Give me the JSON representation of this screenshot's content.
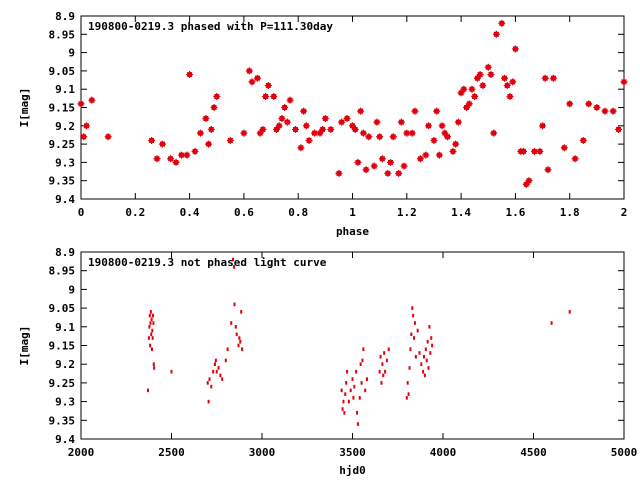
{
  "colors": {
    "points": "#e0000e",
    "axes": "#000000",
    "background": "#ffffff"
  },
  "chart_data": [
    {
      "type": "scatter",
      "title": "190800-0219.3 phased with P=111.30day",
      "xlabel": "phase",
      "ylabel": "I[mag]",
      "xlim": [
        0,
        2
      ],
      "ylim": [
        8.9,
        9.4
      ],
      "y_inverted": true,
      "grid": false,
      "marker": "filled-square-plus",
      "xticks": [
        "0",
        "0.2",
        "0.4",
        "0.6",
        "0.8",
        "1",
        "1.2",
        "1.4",
        "1.6",
        "1.8",
        "2"
      ],
      "yticks": [
        "8.9",
        "8.95",
        "9",
        "9.05",
        "9.1",
        "9.15",
        "9.2",
        "9.25",
        "9.3",
        "9.35",
        "9.4"
      ],
      "points": [
        [
          0.0,
          9.14
        ],
        [
          0.01,
          9.23
        ],
        [
          0.02,
          9.2
        ],
        [
          0.04,
          9.13
        ],
        [
          0.1,
          9.23
        ],
        [
          0.26,
          9.24
        ],
        [
          0.28,
          9.29
        ],
        [
          0.3,
          9.25
        ],
        [
          0.33,
          9.29
        ],
        [
          0.35,
          9.3
        ],
        [
          0.37,
          9.28
        ],
        [
          0.39,
          9.28
        ],
        [
          0.4,
          9.06
        ],
        [
          0.42,
          9.27
        ],
        [
          0.44,
          9.22
        ],
        [
          0.46,
          9.18
        ],
        [
          0.47,
          9.25
        ],
        [
          0.48,
          9.21
        ],
        [
          0.49,
          9.15
        ],
        [
          0.5,
          9.12
        ],
        [
          0.55,
          9.24
        ],
        [
          0.6,
          9.22
        ],
        [
          0.62,
          9.05
        ],
        [
          0.63,
          9.08
        ],
        [
          0.65,
          9.07
        ],
        [
          0.66,
          9.22
        ],
        [
          0.67,
          9.21
        ],
        [
          0.68,
          9.12
        ],
        [
          0.69,
          9.09
        ],
        [
          0.71,
          9.12
        ],
        [
          0.72,
          9.21
        ],
        [
          0.73,
          9.2
        ],
        [
          0.74,
          9.18
        ],
        [
          0.75,
          9.15
        ],
        [
          0.76,
          9.19
        ],
        [
          0.77,
          9.13
        ],
        [
          0.79,
          9.21
        ],
        [
          0.81,
          9.26
        ],
        [
          0.82,
          9.16
        ],
        [
          0.83,
          9.2
        ],
        [
          0.84,
          9.24
        ],
        [
          0.86,
          9.22
        ],
        [
          0.88,
          9.22
        ],
        [
          0.89,
          9.21
        ],
        [
          0.9,
          9.18
        ],
        [
          0.92,
          9.21
        ],
        [
          0.95,
          9.33
        ],
        [
          0.96,
          9.19
        ],
        [
          0.98,
          9.18
        ],
        [
          1.0,
          9.2
        ],
        [
          1.01,
          9.21
        ],
        [
          1.02,
          9.3
        ],
        [
          1.03,
          9.16
        ],
        [
          1.04,
          9.22
        ],
        [
          1.05,
          9.32
        ],
        [
          1.06,
          9.23
        ],
        [
          1.08,
          9.31
        ],
        [
          1.09,
          9.19
        ],
        [
          1.1,
          9.23
        ],
        [
          1.11,
          9.29
        ],
        [
          1.13,
          9.33
        ],
        [
          1.14,
          9.3
        ],
        [
          1.15,
          9.23
        ],
        [
          1.17,
          9.33
        ],
        [
          1.18,
          9.19
        ],
        [
          1.19,
          9.31
        ],
        [
          1.2,
          9.22
        ],
        [
          1.22,
          9.22
        ],
        [
          1.23,
          9.16
        ],
        [
          1.25,
          9.29
        ],
        [
          1.27,
          9.28
        ],
        [
          1.28,
          9.2
        ],
        [
          1.3,
          9.24
        ],
        [
          1.31,
          9.16
        ],
        [
          1.32,
          9.28
        ],
        [
          1.33,
          9.2
        ],
        [
          1.34,
          9.22
        ],
        [
          1.35,
          9.23
        ],
        [
          1.37,
          9.27
        ],
        [
          1.38,
          9.25
        ],
        [
          1.39,
          9.19
        ],
        [
          1.4,
          9.11
        ],
        [
          1.41,
          9.1
        ],
        [
          1.42,
          9.15
        ],
        [
          1.43,
          9.14
        ],
        [
          1.44,
          9.1
        ],
        [
          1.45,
          9.12
        ],
        [
          1.46,
          9.07
        ],
        [
          1.47,
          9.06
        ],
        [
          1.48,
          9.09
        ],
        [
          1.5,
          9.04
        ],
        [
          1.51,
          9.06
        ],
        [
          1.52,
          9.22
        ],
        [
          1.53,
          8.95
        ],
        [
          1.55,
          8.92
        ],
        [
          1.56,
          9.07
        ],
        [
          1.57,
          9.09
        ],
        [
          1.58,
          9.12
        ],
        [
          1.59,
          9.08
        ],
        [
          1.6,
          8.99
        ],
        [
          1.62,
          9.27
        ],
        [
          1.63,
          9.27
        ],
        [
          1.64,
          9.36
        ],
        [
          1.65,
          9.35
        ],
        [
          1.67,
          9.27
        ],
        [
          1.69,
          9.27
        ],
        [
          1.7,
          9.2
        ],
        [
          1.71,
          9.07
        ],
        [
          1.72,
          9.32
        ],
        [
          1.74,
          9.07
        ],
        [
          1.78,
          9.26
        ],
        [
          1.8,
          9.14
        ],
        [
          1.82,
          9.29
        ],
        [
          1.85,
          9.24
        ],
        [
          1.87,
          9.14
        ],
        [
          1.9,
          9.15
        ],
        [
          1.93,
          9.16
        ],
        [
          1.96,
          9.16
        ],
        [
          1.98,
          9.21
        ],
        [
          2.0,
          9.08
        ]
      ]
    },
    {
      "type": "scatter",
      "title": "190800-0219.3 not phased light curve",
      "xlabel": "hjd0",
      "ylabel": "I[mag]",
      "xlim": [
        2000,
        5000
      ],
      "ylim": [
        8.9,
        9.4
      ],
      "y_inverted": true,
      "grid": false,
      "marker": "small-dot",
      "xticks": [
        "2000",
        "2500",
        "3000",
        "3500",
        "4000",
        "4500",
        "5000"
      ],
      "yticks": [
        "8.9",
        "8.95",
        "9",
        "9.05",
        "9.1",
        "9.15",
        "9.2",
        "9.25",
        "9.3",
        "9.35",
        "9.4"
      ],
      "points": [
        [
          2370,
          9.27
        ],
        [
          2375,
          9.13
        ],
        [
          2378,
          9.1
        ],
        [
          2380,
          9.07
        ],
        [
          2382,
          9.15
        ],
        [
          2384,
          9.09
        ],
        [
          2386,
          9.06
        ],
        [
          2388,
          9.12
        ],
        [
          2390,
          9.08
        ],
        [
          2392,
          9.16
        ],
        [
          2394,
          9.11
        ],
        [
          2396,
          9.13
        ],
        [
          2398,
          9.07
        ],
        [
          2400,
          9.09
        ],
        [
          2402,
          9.2
        ],
        [
          2404,
          9.21
        ],
        [
          2500,
          9.22
        ],
        [
          2700,
          9.25
        ],
        [
          2705,
          9.3
        ],
        [
          2710,
          9.24
        ],
        [
          2720,
          9.26
        ],
        [
          2730,
          9.22
        ],
        [
          2740,
          9.2
        ],
        [
          2745,
          9.19
        ],
        [
          2750,
          9.22
        ],
        [
          2760,
          9.21
        ],
        [
          2770,
          9.23
        ],
        [
          2780,
          9.24
        ],
        [
          2800,
          9.19
        ],
        [
          2810,
          9.16
        ],
        [
          2830,
          9.09
        ],
        [
          2840,
          8.92
        ],
        [
          2845,
          8.94
        ],
        [
          2848,
          9.04
        ],
        [
          2855,
          9.1
        ],
        [
          2860,
          9.12
        ],
        [
          2870,
          9.15
        ],
        [
          2875,
          9.13
        ],
        [
          2880,
          9.14
        ],
        [
          2885,
          9.06
        ],
        [
          2890,
          9.16
        ],
        [
          3440,
          9.27
        ],
        [
          3445,
          9.32
        ],
        [
          3450,
          9.3
        ],
        [
          3455,
          9.33
        ],
        [
          3460,
          9.28
        ],
        [
          3465,
          9.25
        ],
        [
          3470,
          9.22
        ],
        [
          3480,
          9.3
        ],
        [
          3490,
          9.27
        ],
        [
          3500,
          9.24
        ],
        [
          3505,
          9.29
        ],
        [
          3510,
          9.26
        ],
        [
          3520,
          9.22
        ],
        [
          3525,
          9.33
        ],
        [
          3530,
          9.36
        ],
        [
          3540,
          9.29
        ],
        [
          3545,
          9.2
        ],
        [
          3550,
          9.25
        ],
        [
          3555,
          9.19
        ],
        [
          3560,
          9.16
        ],
        [
          3570,
          9.27
        ],
        [
          3580,
          9.24
        ],
        [
          3650,
          9.22
        ],
        [
          3655,
          9.18
        ],
        [
          3660,
          9.25
        ],
        [
          3665,
          9.2
        ],
        [
          3670,
          9.23
        ],
        [
          3675,
          9.17
        ],
        [
          3680,
          9.22
        ],
        [
          3690,
          9.19
        ],
        [
          3700,
          9.16
        ],
        [
          3800,
          9.29
        ],
        [
          3805,
          9.25
        ],
        [
          3810,
          9.28
        ],
        [
          3815,
          9.21
        ],
        [
          3820,
          9.16
        ],
        [
          3825,
          9.12
        ],
        [
          3830,
          9.05
        ],
        [
          3835,
          9.07
        ],
        [
          3840,
          9.13
        ],
        [
          3845,
          9.09
        ],
        [
          3850,
          9.18
        ],
        [
          3860,
          9.11
        ],
        [
          3870,
          9.17
        ],
        [
          3880,
          9.2
        ],
        [
          3890,
          9.22
        ],
        [
          3895,
          9.18
        ],
        [
          3900,
          9.23
        ],
        [
          3905,
          9.16
        ],
        [
          3910,
          9.19
        ],
        [
          3915,
          9.14
        ],
        [
          3920,
          9.21
        ],
        [
          3925,
          9.1
        ],
        [
          3930,
          9.17
        ],
        [
          3935,
          9.13
        ],
        [
          3940,
          9.15
        ],
        [
          4600,
          9.09
        ],
        [
          4700,
          9.06
        ]
      ]
    }
  ]
}
